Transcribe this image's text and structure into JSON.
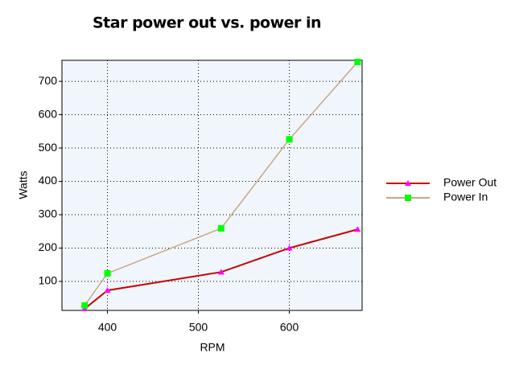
{
  "chart_data": {
    "type": "line",
    "title": "Star power out vs. power in",
    "x_label": "RPM",
    "y_label": "Watts",
    "x": [
      375,
      400,
      525,
      600,
      675
    ],
    "series": [
      {
        "name": "Power Out",
        "color": "#cc0000",
        "marker_color": "#ff00ff",
        "marker": "triangle",
        "values": [
          18,
          73,
          128,
          200,
          256
        ]
      },
      {
        "name": "Power In",
        "color": "#c8a882",
        "marker_color": "#00ff00",
        "marker": "square",
        "values": [
          28,
          124,
          259,
          526,
          758
        ]
      }
    ],
    "xlim": [
      350,
      680
    ],
    "xticks": [
      400,
      500,
      600
    ],
    "ylim": [
      13,
      763
    ],
    "yticks": [
      100,
      200,
      300,
      400,
      500,
      600,
      700
    ],
    "grid": true,
    "legend": "right"
  }
}
